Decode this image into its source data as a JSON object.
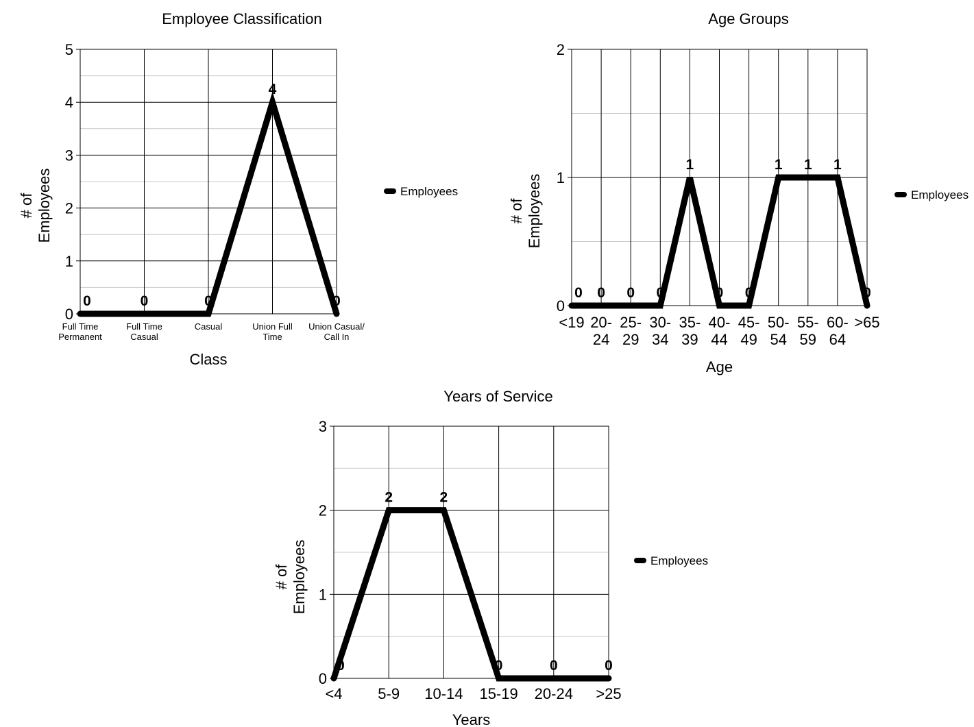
{
  "chart_data": [
    {
      "type": "line",
      "title": "Employee Classification",
      "xlabel": "Class",
      "ylabel": [
        "# of",
        "Employees"
      ],
      "ylim": [
        0,
        5
      ],
      "yticks": [
        "0",
        "1",
        "2",
        "3",
        "4",
        "5"
      ],
      "categories": [
        [
          "Full Time",
          "Permanent"
        ],
        [
          "Full Time",
          "Casual"
        ],
        [
          "Casual"
        ],
        [
          "Union Full",
          "Time"
        ],
        [
          "Union Casual/",
          "Call In"
        ]
      ],
      "series": [
        {
          "name": "Employees",
          "values": [
            0,
            0,
            0,
            4,
            0
          ]
        }
      ],
      "data_labels": [
        "0",
        "0",
        "0",
        "4",
        "0"
      ],
      "grid": true,
      "legend": "right"
    },
    {
      "type": "line",
      "title": "Age Groups",
      "xlabel": "Age",
      "ylabel": [
        "# of",
        "Employees"
      ],
      "ylim": [
        0,
        2
      ],
      "yticks": [
        "0",
        "1",
        "2"
      ],
      "categories": [
        [
          "<19"
        ],
        [
          "20-",
          "24"
        ],
        [
          "25-",
          "29"
        ],
        [
          "30-",
          "34"
        ],
        [
          "35-",
          "39"
        ],
        [
          "40-",
          "44"
        ],
        [
          "45-",
          "49"
        ],
        [
          "50-",
          "54"
        ],
        [
          "55-",
          "59"
        ],
        [
          "60-",
          "64"
        ],
        [
          ">65"
        ]
      ],
      "series": [
        {
          "name": "Employees",
          "values": [
            0,
            0,
            0,
            0,
            1,
            0,
            0,
            1,
            1,
            1,
            0
          ]
        }
      ],
      "data_labels": [
        "0",
        "0",
        "0",
        "0",
        "1",
        "0",
        "0",
        "1",
        "1",
        "1",
        "0"
      ],
      "grid": true,
      "legend": "right"
    },
    {
      "type": "line",
      "title": "Years of Service",
      "xlabel": "Years",
      "ylabel": [
        "# of",
        "Employees"
      ],
      "ylim": [
        0,
        3
      ],
      "yticks": [
        "0",
        "1",
        "2",
        "3"
      ],
      "categories": [
        [
          "<4"
        ],
        [
          "5-9"
        ],
        [
          "10-14"
        ],
        [
          "15-19"
        ],
        [
          "20-24"
        ],
        [
          ">25"
        ]
      ],
      "series": [
        {
          "name": "Employees",
          "values": [
            0,
            2,
            2,
            0,
            0,
            0
          ]
        }
      ],
      "data_labels": [
        "0",
        "2",
        "2",
        "0",
        "0",
        "0"
      ],
      "grid": true,
      "legend": "right"
    }
  ]
}
